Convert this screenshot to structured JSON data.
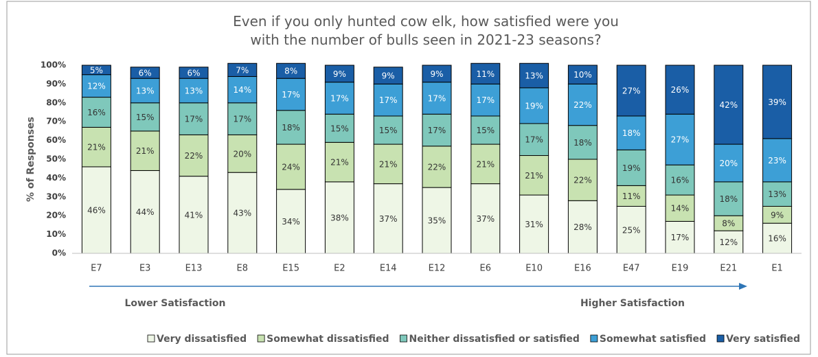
{
  "chart_data": {
    "type": "stacked_bar",
    "title": "Even if you only hunted cow elk, how satisfied were you with the number of bulls seen in 2021-23 seasons?",
    "y_label": "% of Responses",
    "categories": [
      "E7",
      "E3",
      "E13",
      "E8",
      "E15",
      "E2",
      "E14",
      "E12",
      "E6",
      "E10",
      "E16",
      "E47",
      "E19",
      "E21",
      "E1"
    ],
    "series": [
      {
        "name": "Very dissatisfied",
        "color": "#eef6e6",
        "label_color": "#333333",
        "values": [
          46,
          44,
          41,
          43,
          34,
          38,
          37,
          35,
          37,
          31,
          28,
          25,
          17,
          12,
          16
        ],
        "value_labels": [
          "46%",
          "44%",
          "41%",
          "43%",
          "34%",
          "38%",
          "37%",
          "35%",
          "37%",
          "31%",
          "28%",
          "25%",
          "17%",
          "12%",
          "16%"
        ]
      },
      {
        "name": "Somewhat dissatisfied",
        "color": "#c8e2b1",
        "label_color": "#333333",
        "values": [
          21,
          21,
          22,
          20,
          24,
          21,
          21,
          22,
          21,
          21,
          22,
          11,
          14,
          8,
          9
        ],
        "value_labels": [
          "21%",
          "21%",
          "22%",
          "20%",
          "24%",
          "21%",
          "21%",
          "22%",
          "21%",
          "21%",
          "22%",
          "11%",
          "14%",
          "8%",
          "9%"
        ]
      },
      {
        "name": "Neither dissatisfied or satisfied",
        "color": "#7fc8bb",
        "label_color": "#333333",
        "values": [
          16,
          15,
          17,
          17,
          18,
          15,
          15,
          17,
          15,
          17,
          18,
          19,
          16,
          18,
          13
        ],
        "value_labels": [
          "16%",
          "15%",
          "17%",
          "17%",
          "18%",
          "15%",
          "15%",
          "17%",
          "15%",
          "17%",
          "18%",
          "19%",
          "16%",
          "18%",
          "13%"
        ]
      },
      {
        "name": "Somewhat satisfied",
        "color": "#3d9fd6",
        "label_color": "#ffffff",
        "values": [
          12,
          13,
          13,
          14,
          17,
          17,
          17,
          17,
          17,
          19,
          22,
          18,
          27,
          20,
          23
        ],
        "value_labels": [
          "12%",
          "13%",
          "13%",
          "14%",
          "17%",
          "17%",
          "17%",
          "17%",
          "17%",
          "19%",
          "22%",
          "18%",
          "27%",
          "20%",
          "23%"
        ]
      },
      {
        "name": "Very satisfied",
        "color": "#1a5ea6",
        "label_color": "#ffffff",
        "values": [
          5,
          6,
          6,
          7,
          8,
          9,
          9,
          9,
          11,
          13,
          10,
          27,
          26,
          42,
          39
        ],
        "value_labels": [
          "5%",
          "6%",
          "6%",
          "7%",
          "8%",
          "9%",
          "9%",
          "9%",
          "11%",
          "13%",
          "10%",
          "27%",
          "26%",
          "42%",
          "39%"
        ]
      }
    ],
    "ylim": [
      0,
      100
    ],
    "yticks": [
      {
        "value": 0,
        "label": "0%"
      },
      {
        "value": 10,
        "label": "10%"
      },
      {
        "value": 20,
        "label": "20%"
      },
      {
        "value": 30,
        "label": "30%"
      },
      {
        "value": 40,
        "label": "40%"
      },
      {
        "value": 50,
        "label": "50%"
      },
      {
        "value": 60,
        "label": "60%"
      },
      {
        "value": 70,
        "label": "70%"
      },
      {
        "value": 80,
        "label": "80%"
      },
      {
        "value": 90,
        "label": "90%"
      },
      {
        "value": 100,
        "label": "100%"
      }
    ],
    "grid": false,
    "legend": "bottom",
    "annotations": [
      "Lower Satisfaction",
      "Higher Satisfaction"
    ]
  }
}
